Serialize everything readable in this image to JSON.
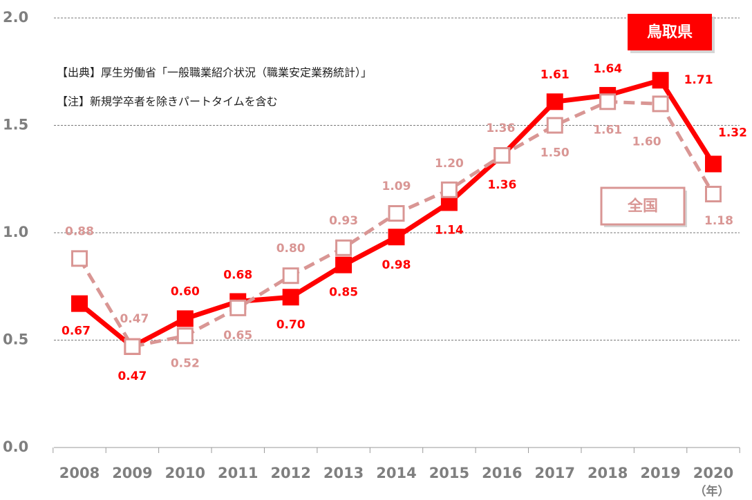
{
  "chart_data": {
    "type": "line",
    "notes": [
      "【出典】厚生労働省「一般職業紹介状況（職業安定業務統計）」",
      "【注】新規学卒者を除きパートタイムを含む"
    ],
    "x_unit": "（年）",
    "categories": [
      "2008",
      "2009",
      "2010",
      "2011",
      "2012",
      "2013",
      "2014",
      "2015",
      "2016",
      "2017",
      "2018",
      "2019",
      "2020"
    ],
    "series": [
      {
        "name": "鳥取県",
        "color": "#ff0000",
        "dashed": false,
        "values": [
          0.67,
          0.47,
          0.6,
          0.68,
          0.7,
          0.85,
          0.98,
          1.14,
          1.36,
          1.61,
          1.64,
          1.71,
          1.32
        ],
        "value_labels": [
          "0.67",
          "0.47",
          "0.60",
          "0.68",
          "0.70",
          "0.85",
          "0.98",
          "1.14",
          "1.36",
          "1.61",
          "1.64",
          "1.71",
          "1.32"
        ]
      },
      {
        "name": "全国",
        "color": "#d99694",
        "dashed": true,
        "values": [
          0.88,
          0.47,
          0.52,
          0.65,
          0.8,
          0.93,
          1.09,
          1.2,
          1.36,
          1.5,
          1.61,
          1.6,
          1.18
        ],
        "value_labels": [
          "0.88",
          "0.47",
          "0.52",
          "0.65",
          "0.80",
          "0.93",
          "1.09",
          "1.20",
          "1.36",
          "1.50",
          "1.61",
          "1.60",
          "1.18"
        ]
      }
    ],
    "ylim": [
      0,
      2
    ],
    "yticks": [
      {
        "value": 0,
        "label": "0.0"
      },
      {
        "value": 0.5,
        "label": "0.5"
      },
      {
        "value": 1,
        "label": "1.0"
      },
      {
        "value": 1.5,
        "label": "1.5"
      },
      {
        "value": 2,
        "label": "2.0"
      }
    ],
    "grid": true
  }
}
